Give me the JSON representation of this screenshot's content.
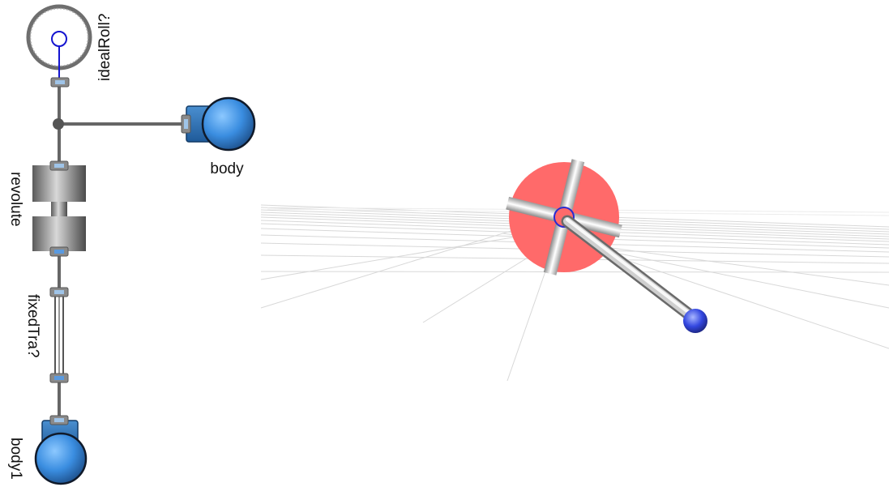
{
  "diagram": {
    "components": {
      "idealRolling": {
        "label": "idealRoll?",
        "icon": "rolling-wheel-icon"
      },
      "body": {
        "label": "body",
        "icon": "body-sphere-icon"
      },
      "revolute": {
        "label": "revolute",
        "icon": "revolute-joint-icon"
      },
      "fixedTranslation": {
        "label": "fixedTra?",
        "icon": "fixed-translation-icon"
      },
      "body1": {
        "label": "body1",
        "icon": "body-sphere-icon"
      }
    },
    "colors": {
      "connection": "#666666",
      "wheel_outline": "#777777",
      "frame_port": "#6a8aa8",
      "body_sphere": "#3a8de0",
      "body_box": "#2f6fb0"
    }
  },
  "animation": {
    "icons": {
      "wheel": "red-wheel-icon",
      "rod": "rod-icon",
      "ball": "blue-ball-icon",
      "ground": "ground-grid-icon"
    },
    "colors": {
      "wheel": "#ff6a6a",
      "rod": "#c8c8c8",
      "ball": "#2b3fd6",
      "grid": "#d8d8d8"
    }
  }
}
